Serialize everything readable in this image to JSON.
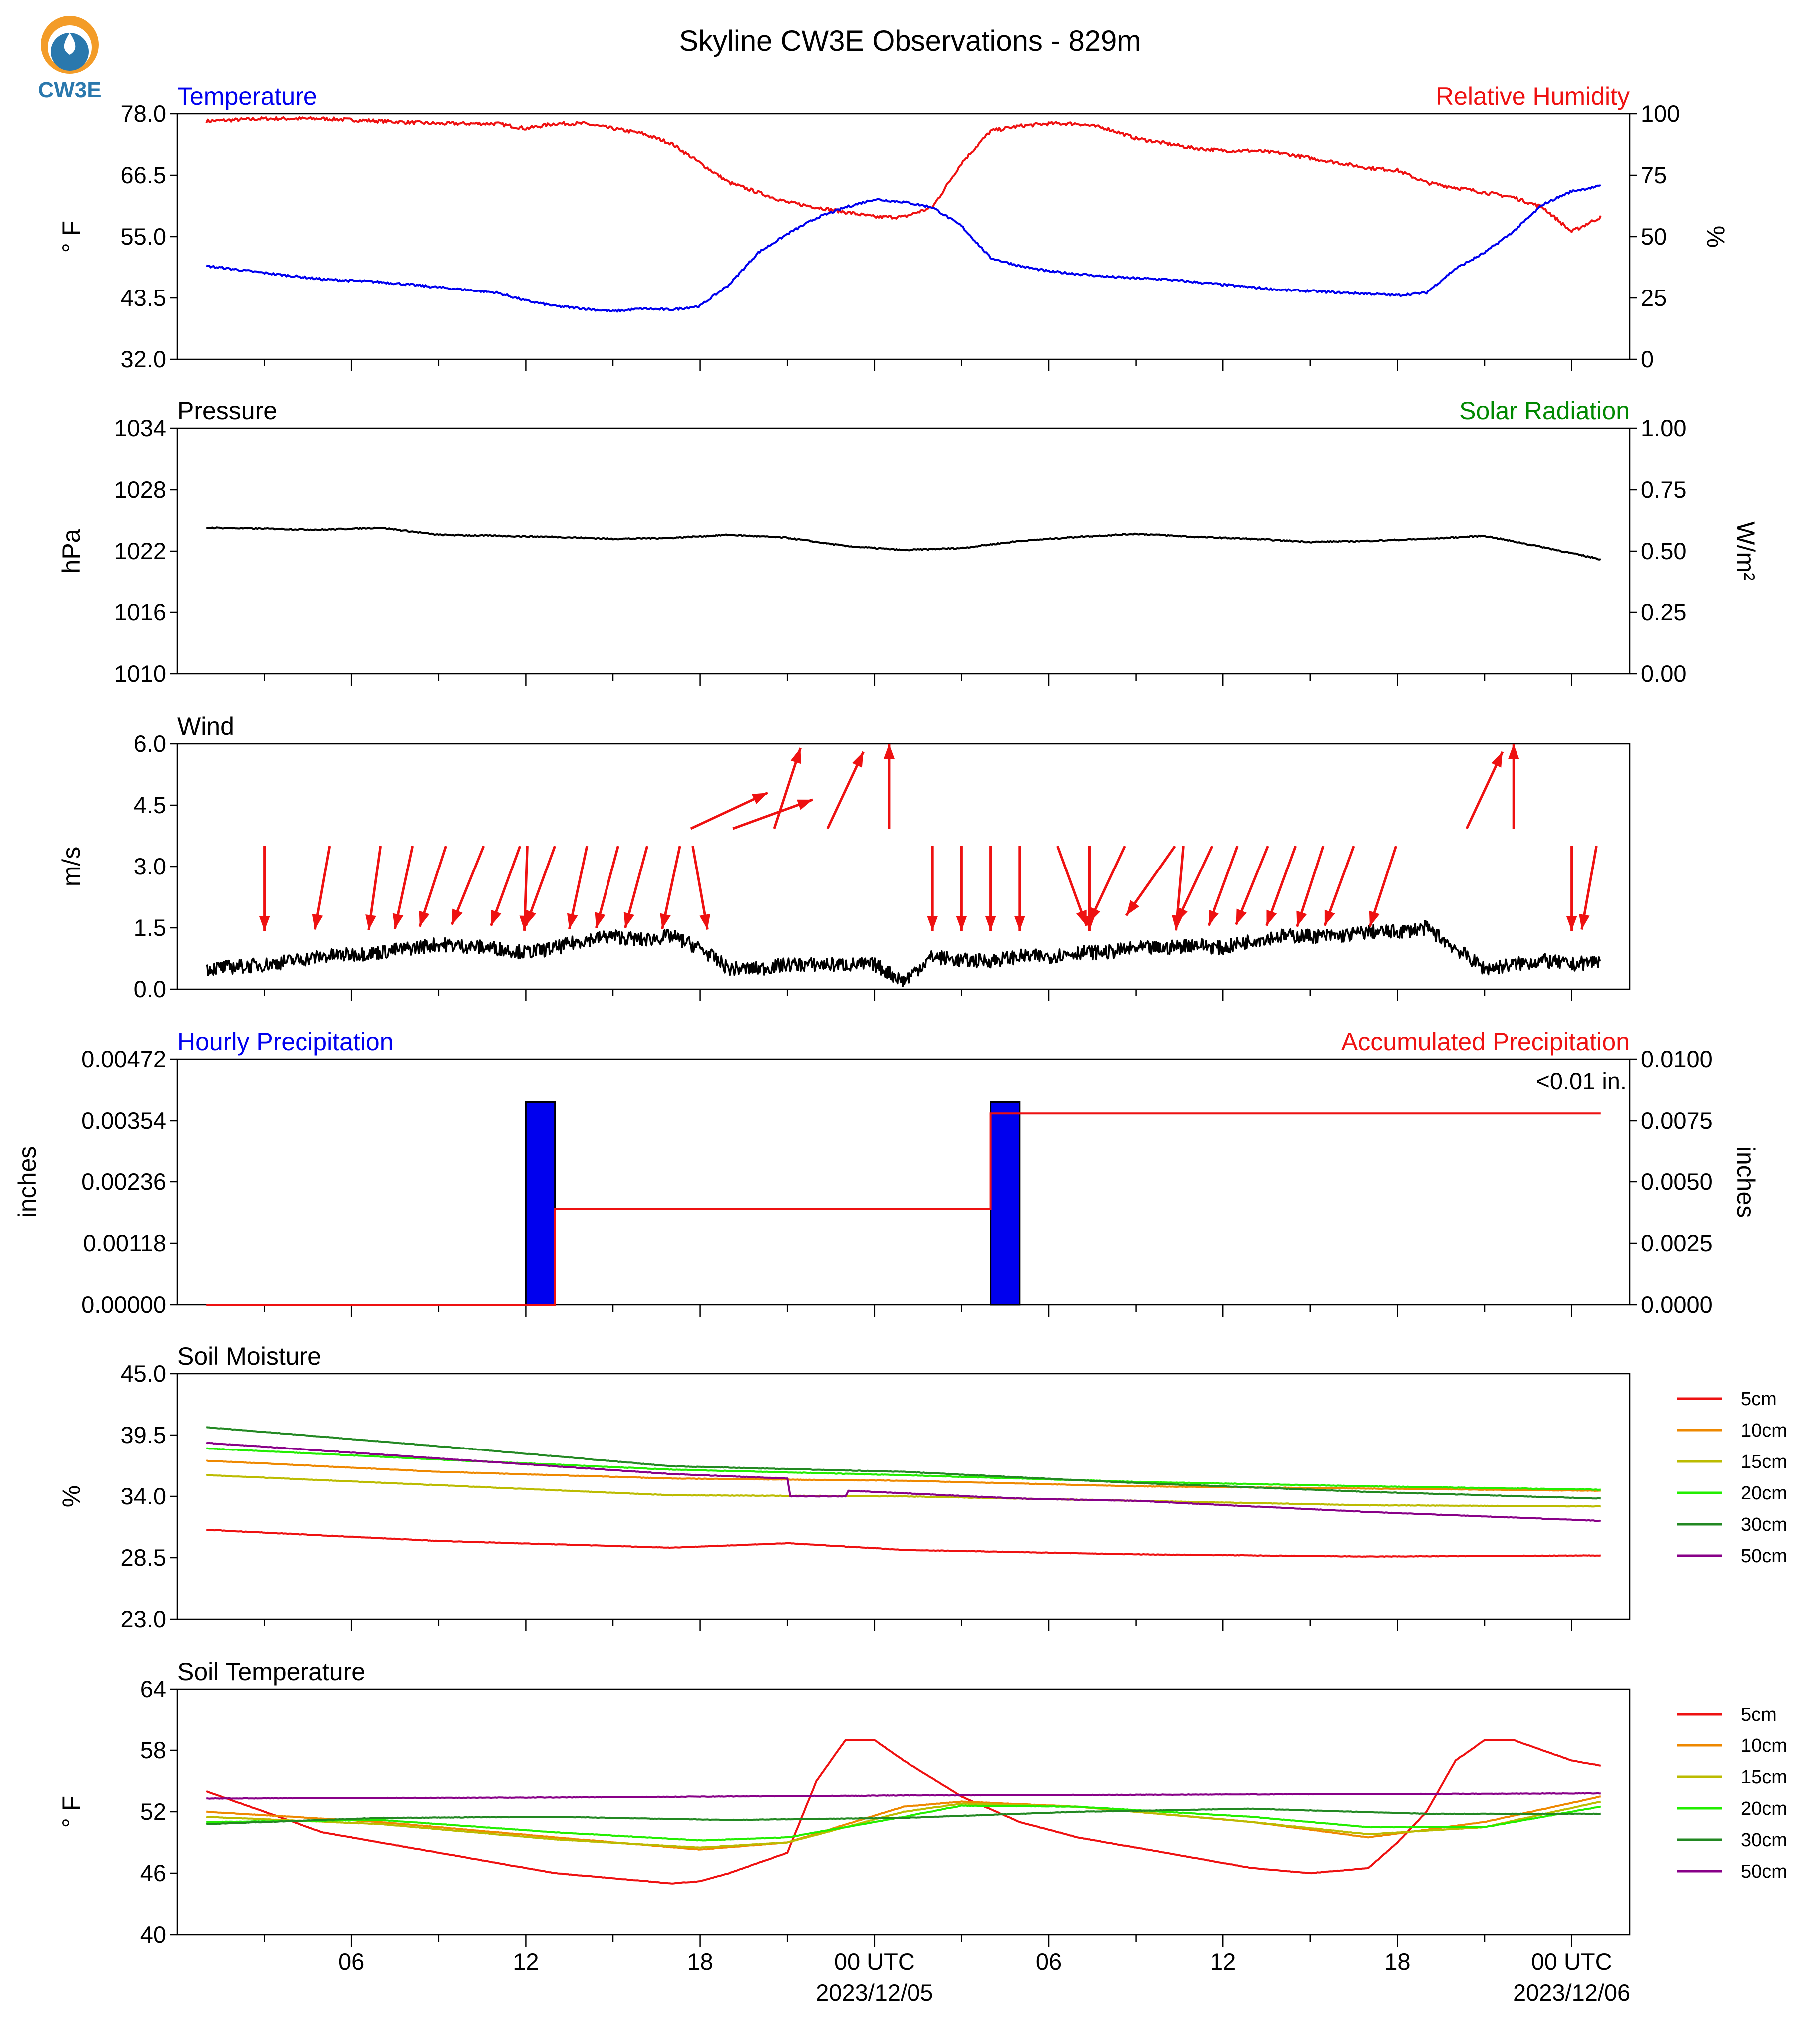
{
  "figure": {
    "title": "Skyline CW3E Observations - 829m",
    "logo_text": "CW3E",
    "x_axis": {
      "tick_labels": [
        "06",
        "12",
        "18",
        "00 UTC",
        "06",
        "12",
        "18",
        "00 UTC"
      ],
      "date_labels": [
        "2023/12/05",
        "2023/12/06"
      ]
    }
  },
  "panels": {
    "temp": {
      "left_title": "Temperature",
      "right_title": "Relative Humidity",
      "left_ylabel": "° F",
      "right_ylabel": "%",
      "left_ticks": [
        "78.0",
        "66.5",
        "55.0",
        "43.5",
        "32.0"
      ],
      "right_ticks": [
        "100",
        "75",
        "50",
        "25",
        "0"
      ]
    },
    "pressure": {
      "left_title": "Pressure",
      "right_title": "Solar Radiation",
      "left_ylabel": "hPa",
      "right_ylabel": "W/m²",
      "left_ticks": [
        "1034",
        "1028",
        "1022",
        "1016",
        "1010"
      ],
      "right_ticks": [
        "1.00",
        "0.75",
        "0.50",
        "0.25",
        "0.00"
      ]
    },
    "wind": {
      "left_title": "Wind",
      "left_ylabel": "m/s",
      "left_ticks": [
        "6.0",
        "4.5",
        "3.0",
        "1.5",
        "0.0"
      ]
    },
    "precip": {
      "left_title": "Hourly Precipitation",
      "right_title": "Accumulated Precipitation",
      "left_ylabel": "inches",
      "right_ylabel": "inches",
      "left_ticks": [
        "0.00472",
        "0.00354",
        "0.00236",
        "0.00118",
        "0.00000"
      ],
      "right_ticks": [
        "0.0100",
        "0.0075",
        "0.0050",
        "0.0025",
        "0.0000"
      ],
      "annotation": "<0.01 in."
    },
    "soilm": {
      "left_title": "Soil Moisture",
      "left_ylabel": "%",
      "left_ticks": [
        "45.0",
        "39.5",
        "34.0",
        "28.5",
        "23.0"
      ]
    },
    "soilt": {
      "left_title": "Soil Temperature",
      "left_ylabel": "° F",
      "left_ticks": [
        "64",
        "58",
        "52",
        "46",
        "40"
      ]
    }
  },
  "legend_labels": [
    "5cm",
    "10cm",
    "15cm",
    "20cm",
    "30cm",
    "50cm"
  ],
  "colors": {
    "temperature": "#0000ee",
    "humidity": "#ee1111",
    "pressure": "#000000",
    "solar": "#008800",
    "wind": "#000000",
    "wind_barb": "#ee1111",
    "hourly_precip": "#0000ee",
    "accum_precip": "#ee1111",
    "depths": [
      "#ee1111",
      "#ee8800",
      "#bbbb00",
      "#22ee00",
      "#228822",
      "#880088"
    ],
    "logo_orange": "#f39c28",
    "logo_blue": "#2a78ad"
  },
  "chart_data": [
    {
      "type": "line",
      "title": "Temperature / Relative Humidity",
      "x_unit": "hours since 2023-12-04 01 UTC",
      "ylim": [
        32.0,
        78.0
      ],
      "y2lim": [
        0,
        100
      ],
      "series": [
        {
          "name": "Temperature",
          "axis": "left",
          "x": [
            0,
            2,
            4,
            6,
            8,
            10,
            11,
            12,
            13,
            14,
            15,
            16,
            17,
            18,
            19,
            20,
            21,
            22,
            23,
            24,
            25,
            26,
            27,
            28,
            29,
            30,
            31,
            32,
            33,
            34,
            35,
            36,
            37,
            38,
            39,
            40,
            41,
            42,
            43,
            44,
            45,
            46,
            47,
            48
          ],
          "values": [
            49.5,
            48.2,
            47.0,
            46.5,
            45.5,
            44.5,
            43.0,
            42.0,
            41.5,
            41.0,
            41.5,
            41.3,
            42.0,
            46.0,
            52.0,
            55.5,
            58.5,
            60.5,
            62.0,
            61.5,
            60.5,
            57.0,
            51.0,
            49.5,
            48.5,
            48.0,
            47.5,
            47.2,
            47.0,
            46.5,
            46.0,
            45.5,
            45.0,
            44.8,
            44.5,
            44.3,
            44.0,
            44.5,
            49.0,
            52.0,
            56.0,
            61.0,
            63.5,
            64.5
          ]
        },
        {
          "name": "Relative Humidity",
          "axis": "right",
          "x": [
            0,
            2,
            4,
            6,
            8,
            10,
            11,
            12,
            13,
            14,
            15,
            16,
            17,
            18,
            19,
            20,
            21,
            22,
            23,
            24,
            25,
            26,
            27,
            28,
            29,
            30,
            31,
            32,
            33,
            34,
            35,
            36,
            37,
            38,
            39,
            40,
            41,
            42,
            43,
            44,
            45,
            46,
            47,
            48
          ],
          "values": [
            97,
            98,
            98,
            97,
            96,
            96,
            94,
            96,
            96,
            94,
            92,
            88,
            80,
            72,
            68,
            64,
            62,
            60,
            58,
            58,
            62,
            80,
            93,
            95,
            96,
            96,
            94,
            90,
            88,
            86,
            85,
            85,
            84,
            82,
            80,
            78,
            77,
            72,
            70,
            68,
            66,
            62,
            52,
            58
          ]
        }
      ]
    },
    {
      "type": "line",
      "title": "Pressure",
      "ylim": [
        1010,
        1034
      ],
      "y2lim": [
        0.0,
        1.0
      ],
      "series": [
        {
          "name": "Pressure",
          "x": [
            0,
            2,
            4,
            6,
            8,
            10,
            12,
            14,
            16,
            18,
            20,
            22,
            24,
            26,
            28,
            30,
            32,
            34,
            36,
            38,
            40,
            42,
            44,
            46,
            48
          ],
          "values": [
            1024.3,
            1024.2,
            1024.1,
            1024.3,
            1023.6,
            1023.5,
            1023.4,
            1023.2,
            1023.3,
            1023.6,
            1023.3,
            1022.5,
            1022.1,
            1022.3,
            1023.0,
            1023.4,
            1023.7,
            1023.4,
            1023.2,
            1022.9,
            1023.0,
            1023.2,
            1023.5,
            1022.4,
            1021.2
          ]
        }
      ]
    },
    {
      "type": "line",
      "title": "Wind",
      "ylim": [
        0.0,
        6.0
      ],
      "series": [
        {
          "name": "Wind",
          "x": [
            0,
            2,
            4,
            6,
            8,
            10,
            11,
            12,
            13,
            14,
            15,
            16,
            17,
            18,
            19,
            20,
            21,
            22,
            23,
            24,
            25,
            26,
            27,
            28,
            29,
            30,
            31,
            32,
            33,
            34,
            35,
            36,
            37,
            38,
            39,
            40,
            41,
            42,
            43,
            44,
            45,
            46,
            47,
            48
          ],
          "values": [
            0.5,
            0.6,
            0.8,
            0.9,
            1.1,
            1.0,
            0.9,
            1.0,
            1.2,
            1.3,
            1.2,
            1.3,
            1.0,
            0.5,
            0.5,
            0.6,
            0.6,
            0.6,
            0.6,
            0.2,
            0.8,
            0.7,
            0.7,
            0.8,
            0.8,
            0.9,
            0.9,
            1.0,
            1.0,
            1.1,
            1.0,
            1.2,
            1.3,
            1.3,
            1.3,
            1.4,
            1.4,
            1.5,
            1.0,
            0.5,
            0.6,
            0.7,
            0.6,
            0.7
          ]
        }
      ]
    },
    {
      "type": "bar",
      "title": "Hourly Precipitation / Accumulated Precipitation",
      "ylim": [
        0.0,
        0.00472
      ],
      "y2lim": [
        0.0,
        0.01
      ],
      "series": [
        {
          "name": "Hourly Precipitation",
          "axis": "left",
          "x": [
            11,
            27
          ],
          "values": [
            0.0039,
            0.0039
          ]
        },
        {
          "name": "Accumulated Precipitation",
          "axis": "right",
          "x": [
            0,
            12,
            27,
            48
          ],
          "values": [
            0.0,
            0.0039,
            0.0078,
            0.0078
          ]
        }
      ]
    },
    {
      "type": "line",
      "title": "Soil Moisture",
      "ylim": [
        23.0,
        45.0
      ],
      "series": [
        {
          "name": "5cm",
          "x": [
            0,
            8,
            16,
            20,
            24,
            32,
            40,
            48
          ],
          "values": [
            31.0,
            30.0,
            29.4,
            29.8,
            29.2,
            28.8,
            28.6,
            28.7
          ]
        },
        {
          "name": "10cm",
          "x": [
            0,
            8,
            16,
            24,
            32,
            40,
            48
          ],
          "values": [
            37.2,
            36.2,
            35.6,
            35.4,
            34.9,
            34.7,
            34.5
          ]
        },
        {
          "name": "15cm",
          "x": [
            0,
            8,
            16,
            24,
            32,
            40,
            48
          ],
          "values": [
            35.9,
            35.0,
            34.1,
            34.0,
            33.6,
            33.2,
            33.1
          ]
        },
        {
          "name": "20cm",
          "x": [
            0,
            8,
            16,
            24,
            32,
            40,
            48
          ],
          "values": [
            38.3,
            37.3,
            36.4,
            35.9,
            35.3,
            34.9,
            34.6
          ]
        },
        {
          "name": "30cm",
          "x": [
            0,
            8,
            16,
            24,
            32,
            40,
            48
          ],
          "values": [
            40.2,
            38.5,
            36.7,
            36.2,
            35.2,
            34.4,
            33.8
          ]
        },
        {
          "name": "50cm",
          "x": [
            0,
            8,
            16,
            20,
            20.1,
            22,
            22.1,
            28,
            32,
            40,
            48
          ],
          "values": [
            38.8,
            37.4,
            36.0,
            35.6,
            34.0,
            34.0,
            34.5,
            33.8,
            33.6,
            32.6,
            31.8
          ]
        }
      ]
    },
    {
      "type": "line",
      "title": "Soil Temperature",
      "ylim": [
        40,
        64
      ],
      "series": [
        {
          "name": "5cm",
          "x": [
            0,
            4,
            8,
            12,
            14,
            16,
            17,
            18,
            20,
            21,
            22,
            23,
            24,
            26,
            28,
            30,
            32,
            34,
            36,
            38,
            40,
            41,
            42,
            43,
            44,
            45,
            46,
            47,
            48
          ],
          "values": [
            54,
            50,
            48,
            46,
            45.5,
            45,
            45.2,
            46,
            48,
            55,
            59,
            59,
            57,
            53.5,
            51,
            49.5,
            48.5,
            47.5,
            46.5,
            46,
            46.5,
            49,
            52,
            57,
            59,
            59,
            58,
            57,
            56.5
          ]
        },
        {
          "name": "10cm",
          "x": [
            0,
            6,
            12,
            17,
            20,
            24,
            26,
            30,
            36,
            40,
            44,
            48
          ],
          "values": [
            52,
            51,
            49.5,
            48.3,
            49,
            52.5,
            53,
            52.5,
            51,
            49.5,
            51,
            53.5
          ]
        },
        {
          "name": "15cm",
          "x": [
            0,
            6,
            12,
            17,
            20,
            24,
            26,
            30,
            36,
            40,
            44,
            48
          ],
          "values": [
            51.5,
            50.8,
            49.3,
            48.5,
            49,
            52,
            52.8,
            52.5,
            51,
            49.8,
            50.5,
            53
          ]
        },
        {
          "name": "20cm",
          "x": [
            0,
            6,
            12,
            17,
            20,
            24,
            26,
            30,
            36,
            40,
            44,
            48
          ],
          "values": [
            51,
            51.2,
            50,
            49.2,
            49.5,
            51.5,
            52.6,
            52.5,
            51.5,
            50.5,
            50.5,
            52.5
          ]
        },
        {
          "name": "30cm",
          "x": [
            0,
            6,
            12,
            18,
            24,
            30,
            36,
            42,
            48
          ],
          "values": [
            50.8,
            51.4,
            51.5,
            51.2,
            51.4,
            52,
            52.3,
            51.8,
            51.8
          ]
        },
        {
          "name": "50cm",
          "x": [
            0,
            12,
            24,
            36,
            48
          ],
          "values": [
            53.3,
            53.4,
            53.6,
            53.7,
            53.8
          ]
        }
      ]
    }
  ]
}
